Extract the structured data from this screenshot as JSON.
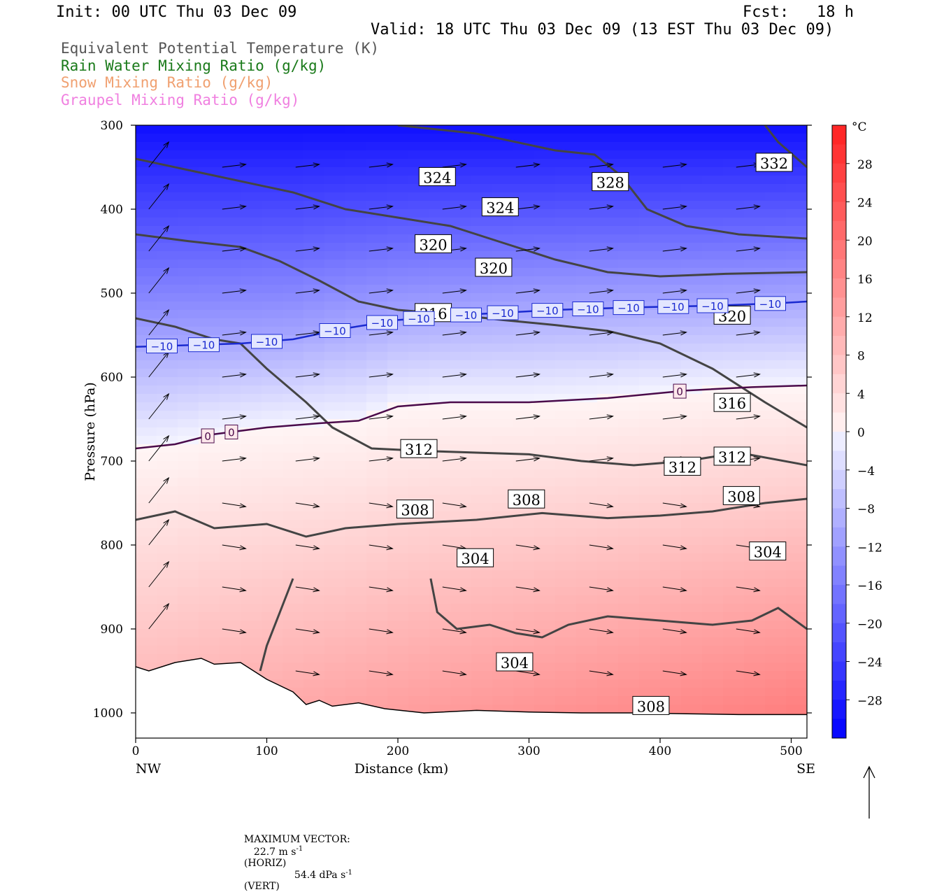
{
  "header": {
    "init": "Init: 00 UTC Thu 03 Dec 09",
    "fcst": "Fcst:   18 h",
    "valid": "Valid: 18 UTC Thu 03 Dec 09 (13 EST Thu 03 Dec 09)"
  },
  "legend": [
    {
      "label": "Equivalent Potential Temperature (K)",
      "color": "#555555"
    },
    {
      "label": "Rain Water Mixing Ratio (g/kg)",
      "color": "#1a7a1a"
    },
    {
      "label": "Snow Mixing Ratio (g/kg)",
      "color": "#f0a070"
    },
    {
      "label": "Graupel Mixing Ratio (g/kg)",
      "color": "#f080e0"
    }
  ],
  "footer": {
    "label": "MAXIMUM VECTOR:",
    "horiz_value": "22.7 m s",
    "horiz_exp": "-1",
    "horiz_tag": "(HORIZ)",
    "vert_value": "54.4 dPa s",
    "vert_exp": "-1",
    "vert_tag": "(VERT)"
  },
  "chart_data": {
    "type": "cross-section",
    "xlabel": "Distance (km)",
    "ylabel": "Pressure (hPa)",
    "xlim": [
      0,
      512
    ],
    "ylim": [
      1030,
      300
    ],
    "x_ticks": [
      0,
      100,
      200,
      300,
      400,
      500
    ],
    "y_ticks": [
      300,
      400,
      500,
      600,
      700,
      800,
      900,
      1000
    ],
    "x_end_labels": {
      "left": "NW",
      "right": "SE"
    },
    "colorbar": {
      "unit": "°C",
      "min": -32,
      "max": 32,
      "step": 2,
      "tick_values": [
        28,
        24,
        20,
        16,
        12,
        8,
        4,
        0,
        -4,
        -8,
        -12,
        -16,
        -20,
        -24,
        -28
      ],
      "cold_color": "#0000ff",
      "warm_color": "#ff2020"
    },
    "temperature_contours": [
      {
        "value": -10,
        "label": "−10",
        "color": "#1a2ad0",
        "points": [
          [
            0,
            564
          ],
          [
            40,
            562
          ],
          [
            80,
            560
          ],
          [
            120,
            555
          ],
          [
            160,
            542
          ],
          [
            200,
            532
          ],
          [
            260,
            525
          ],
          [
            320,
            520
          ],
          [
            380,
            517
          ],
          [
            440,
            515
          ],
          [
            490,
            512
          ],
          [
            512,
            510
          ]
        ],
        "label_x": [
          20,
          52,
          100,
          152,
          188,
          216,
          252,
          280,
          314,
          345,
          376,
          410,
          440,
          484
        ]
      },
      {
        "value": 0,
        "label": "0",
        "color": "#4a0a4a",
        "points": [
          [
            0,
            685
          ],
          [
            30,
            680
          ],
          [
            60,
            668
          ],
          [
            100,
            660
          ],
          [
            140,
            655
          ],
          [
            170,
            652
          ],
          [
            200,
            635
          ],
          [
            240,
            630
          ],
          [
            300,
            630
          ],
          [
            360,
            625
          ],
          [
            420,
            616
          ],
          [
            470,
            612
          ],
          [
            512,
            610
          ]
        ],
        "label_x": [
          55,
          73,
          415
        ]
      }
    ],
    "theta_e_contours": [
      {
        "value": 332,
        "label": "332",
        "points": [
          [
            480,
            300
          ],
          [
            490,
            320
          ],
          [
            512,
            350
          ]
        ]
      },
      {
        "value": 328,
        "label": "328",
        "points": [
          [
            200,
            300
          ],
          [
            260,
            310
          ],
          [
            320,
            330
          ],
          [
            350,
            335
          ],
          [
            370,
            360
          ],
          [
            390,
            400
          ],
          [
            420,
            420
          ],
          [
            460,
            430
          ],
          [
            512,
            435
          ]
        ]
      },
      {
        "value": 324,
        "label": "324",
        "points": [
          [
            0,
            340
          ],
          [
            60,
            360
          ],
          [
            120,
            380
          ],
          [
            160,
            400
          ],
          [
            200,
            410
          ],
          [
            240,
            420
          ],
          [
            280,
            440
          ],
          [
            320,
            460
          ],
          [
            360,
            475
          ],
          [
            400,
            480
          ],
          [
            450,
            477
          ],
          [
            512,
            475
          ]
        ]
      },
      {
        "value": 320,
        "label": "320",
        "points": [
          [
            0,
            430
          ],
          [
            40,
            438
          ],
          [
            80,
            445
          ],
          [
            110,
            462
          ],
          [
            140,
            485
          ],
          [
            170,
            510
          ],
          [
            200,
            520
          ],
          [
            240,
            525
          ],
          [
            280,
            532
          ],
          [
            320,
            538
          ],
          [
            360,
            545
          ],
          [
            400,
            560
          ],
          [
            440,
            590
          ],
          [
            480,
            630
          ],
          [
            512,
            660
          ]
        ]
      },
      {
        "value": 316,
        "label": "316",
        "points": [
          [
            0,
            530
          ],
          [
            30,
            540
          ],
          [
            60,
            555
          ],
          [
            80,
            560
          ],
          [
            100,
            590
          ],
          [
            130,
            630
          ],
          [
            150,
            660
          ],
          [
            180,
            685
          ],
          [
            220,
            688
          ],
          [
            260,
            690
          ],
          [
            300,
            692
          ],
          [
            340,
            700
          ],
          [
            380,
            705
          ],
          [
            420,
            700
          ],
          [
            460,
            690
          ],
          [
            512,
            705
          ]
        ]
      },
      {
        "value": 312,
        "label": "312",
        "points": [
          [
            0,
            770
          ],
          [
            30,
            760
          ],
          [
            60,
            780
          ],
          [
            100,
            775
          ],
          [
            130,
            790
          ],
          [
            160,
            780
          ],
          [
            200,
            775
          ],
          [
            260,
            770
          ],
          [
            310,
            762
          ],
          [
            360,
            768
          ],
          [
            400,
            765
          ],
          [
            440,
            760
          ],
          [
            480,
            750
          ],
          [
            512,
            745
          ]
        ]
      },
      {
        "value": 308,
        "label": "308",
        "points": [
          [
            120,
            840
          ],
          [
            110,
            880
          ],
          [
            100,
            920
          ],
          [
            95,
            950
          ]
        ]
      },
      {
        "value": 304,
        "label": "304",
        "points": [
          [
            225,
            840
          ],
          [
            230,
            880
          ],
          [
            245,
            900
          ],
          [
            270,
            895
          ],
          [
            290,
            905
          ],
          [
            310,
            910
          ],
          [
            330,
            895
          ],
          [
            360,
            885
          ],
          [
            400,
            890
          ],
          [
            440,
            895
          ],
          [
            470,
            890
          ],
          [
            490,
            875
          ],
          [
            512,
            900
          ]
        ]
      }
    ],
    "theta_e_labels": [
      {
        "text": "324",
        "x": 230,
        "p": 362
      },
      {
        "text": "328",
        "x": 362,
        "p": 368
      },
      {
        "text": "332",
        "x": 487,
        "p": 345
      },
      {
        "text": "324",
        "x": 278,
        "p": 398
      },
      {
        "text": "320",
        "x": 227,
        "p": 442
      },
      {
        "text": "320",
        "x": 273,
        "p": 470
      },
      {
        "text": "316",
        "x": 227,
        "p": 524
      },
      {
        "text": "320",
        "x": 455,
        "p": 527
      },
      {
        "text": "316",
        "x": 455,
        "p": 631
      },
      {
        "text": "312",
        "x": 216,
        "p": 686
      },
      {
        "text": "312",
        "x": 417,
        "p": 707
      },
      {
        "text": "312",
        "x": 455,
        "p": 695
      },
      {
        "text": "308",
        "x": 213,
        "p": 758
      },
      {
        "text": "308",
        "x": 298,
        "p": 746
      },
      {
        "text": "308",
        "x": 462,
        "p": 742
      },
      {
        "text": "304",
        "x": 259,
        "p": 816
      },
      {
        "text": "304",
        "x": 482,
        "p": 808
      },
      {
        "text": "304",
        "x": 289,
        "p": 940
      },
      {
        "text": "308",
        "x": 393,
        "p": 992
      }
    ],
    "terrain": [
      [
        0,
        945
      ],
      [
        10,
        950
      ],
      [
        30,
        940
      ],
      [
        50,
        935
      ],
      [
        60,
        942
      ],
      [
        80,
        940
      ],
      [
        100,
        960
      ],
      [
        120,
        975
      ],
      [
        130,
        990
      ],
      [
        140,
        985
      ],
      [
        150,
        992
      ],
      [
        170,
        988
      ],
      [
        190,
        995
      ],
      [
        220,
        1000
      ],
      [
        260,
        997
      ],
      [
        300,
        999
      ],
      [
        340,
        1000
      ],
      [
        380,
        1000
      ],
      [
        420,
        1001
      ],
      [
        460,
        1002
      ],
      [
        512,
        1002
      ]
    ]
  }
}
